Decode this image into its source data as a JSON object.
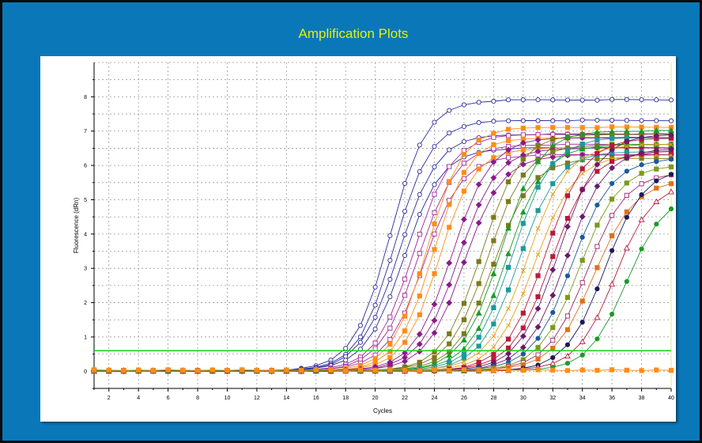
{
  "chart_data": {
    "type": "line",
    "title": "Amplification Plots",
    "xlabel": "Cycles",
    "ylabel": "Fluorescence (dRn)",
    "xlim": [
      1,
      40
    ],
    "ylim": [
      -0.5,
      9
    ],
    "x_ticks": [
      2,
      4,
      6,
      8,
      10,
      12,
      14,
      16,
      18,
      20,
      22,
      24,
      26,
      28,
      30,
      32,
      34,
      36,
      38,
      40
    ],
    "y_ticks": [
      0,
      1,
      2,
      3,
      4,
      5,
      6,
      7,
      8
    ],
    "threshold": 0.6,
    "threshold_color": "#22d122",
    "grid": true,
    "legend": "none",
    "series_model": "sigmoid: F = plateau / (1 + exp(-(cycle - midpoint) / slope))",
    "series": [
      {
        "color": "#2a2a9a",
        "marker": "circle-open",
        "midpoint": 21.0,
        "plateau": 7.9,
        "slope": 1.25
      },
      {
        "color": "#2a2a9a",
        "marker": "circle-open",
        "midpoint": 21.3,
        "plateau": 7.3,
        "slope": 1.25
      },
      {
        "color": "#2a2a9a",
        "marker": "circle-open",
        "midpoint": 21.6,
        "plateau": 6.9,
        "slope": 1.3
      },
      {
        "color": "#2a2a9a",
        "marker": "circle-open",
        "midpoint": 21.9,
        "plateau": 6.5,
        "slope": 1.3
      },
      {
        "color": "#a02a9a",
        "marker": "square-open",
        "midpoint": 22.6,
        "plateau": 6.9,
        "slope": 1.3
      },
      {
        "color": "#a02a9a",
        "marker": "square-open",
        "midpoint": 22.9,
        "plateau": 6.6,
        "slope": 1.3
      },
      {
        "color": "#a02a9a",
        "marker": "square-open",
        "midpoint": 23.3,
        "plateau": 6.3,
        "slope": 1.3
      },
      {
        "color": "#ff8c1a",
        "marker": "square",
        "midpoint": 23.5,
        "plateau": 7.1,
        "slope": 1.2
      },
      {
        "color": "#ff8c1a",
        "marker": "square",
        "midpoint": 23.9,
        "plateau": 6.8,
        "slope": 1.2
      },
      {
        "color": "#ff8c1a",
        "marker": "square",
        "midpoint": 24.3,
        "plateau": 6.5,
        "slope": 1.2
      },
      {
        "color": "#8a1a8a",
        "marker": "diamond",
        "midpoint": 25.2,
        "plateau": 6.8,
        "slope": 1.3
      },
      {
        "color": "#8a1a8a",
        "marker": "diamond",
        "midpoint": 25.6,
        "plateau": 6.5,
        "slope": 1.3
      },
      {
        "color": "#8a1a8a",
        "marker": "diamond",
        "midpoint": 26.0,
        "plateau": 6.3,
        "slope": 1.3
      },
      {
        "color": "#7a7a1a",
        "marker": "square",
        "midpoint": 27.2,
        "plateau": 6.9,
        "slope": 1.3
      },
      {
        "color": "#7a7a1a",
        "marker": "square",
        "midpoint": 27.6,
        "plateau": 6.6,
        "slope": 1.3
      },
      {
        "color": "#7a7a1a",
        "marker": "square",
        "midpoint": 28.0,
        "plateau": 6.2,
        "slope": 1.3
      },
      {
        "color": "#1a9a2a",
        "marker": "triangle",
        "midpoint": 28.5,
        "plateau": 7.0,
        "slope": 1.3
      },
      {
        "color": "#1a9a2a",
        "marker": "triangle",
        "midpoint": 28.9,
        "plateau": 6.6,
        "slope": 1.3
      },
      {
        "color": "#1a9a9a",
        "marker": "square",
        "midpoint": 29.3,
        "plateau": 6.8,
        "slope": 1.3
      },
      {
        "color": "#1a9a9a",
        "marker": "square",
        "midpoint": 29.7,
        "plateau": 6.4,
        "slope": 1.3
      },
      {
        "color": "#e8a01a",
        "marker": "cross",
        "midpoint": 30.3,
        "plateau": 6.6,
        "slope": 1.35
      },
      {
        "color": "#e8a01a",
        "marker": "cross",
        "midpoint": 30.8,
        "plateau": 6.3,
        "slope": 1.35
      },
      {
        "color": "#b81a3a",
        "marker": "square",
        "midpoint": 31.5,
        "plateau": 6.8,
        "slope": 1.35
      },
      {
        "color": "#b81a3a",
        "marker": "square",
        "midpoint": 31.9,
        "plateau": 6.4,
        "slope": 1.35
      },
      {
        "color": "#6a1a6a",
        "marker": "diamond",
        "midpoint": 32.4,
        "plateau": 6.9,
        "slope": 1.35
      },
      {
        "color": "#6a1a6a",
        "marker": "diamond",
        "midpoint": 32.9,
        "plateau": 6.5,
        "slope": 1.35
      },
      {
        "color": "#1a5a9a",
        "marker": "circle",
        "midpoint": 33.3,
        "plateau": 6.2,
        "slope": 1.35
      },
      {
        "color": "#7a9a1a",
        "marker": "square",
        "midpoint": 33.8,
        "plateau": 6.0,
        "slope": 1.35
      },
      {
        "color": "#9a2a6a",
        "marker": "square-open",
        "midpoint": 34.3,
        "plateau": 5.8,
        "slope": 1.35
      },
      {
        "color": "#e0701a",
        "marker": "square",
        "midpoint": 34.8,
        "plateau": 5.6,
        "slope": 1.4
      },
      {
        "color": "#1a1a5a",
        "marker": "circle",
        "midpoint": 35.5,
        "plateau": 5.9,
        "slope": 1.3
      },
      {
        "color": "#b81a3a",
        "marker": "triangle-open",
        "midpoint": 36.2,
        "plateau": 5.5,
        "slope": 1.3
      },
      {
        "color": "#1a9a2a",
        "marker": "circle",
        "midpoint": 37.0,
        "plateau": 5.2,
        "slope": 1.3
      },
      {
        "color": "#ff8c1a",
        "marker": "square",
        "midpoint": null,
        "plateau": 0.0,
        "slope": 1.0,
        "flat": true
      }
    ]
  }
}
